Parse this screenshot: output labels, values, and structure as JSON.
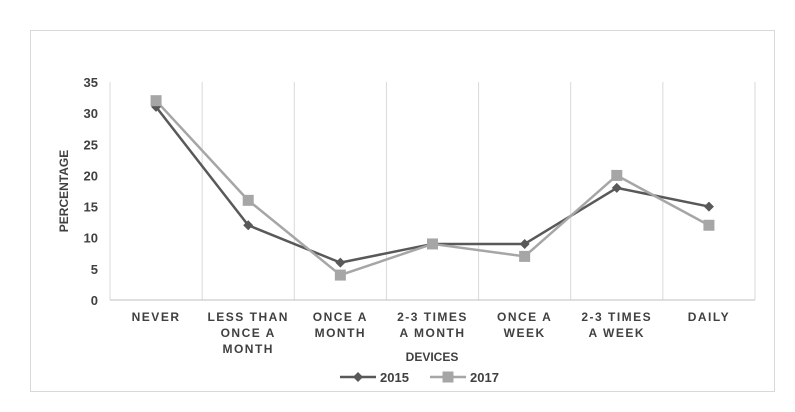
{
  "chart_data": {
    "type": "line",
    "title": "",
    "xlabel": "DEVICES",
    "ylabel": "PERCENTAGE",
    "categories": [
      [
        "NEVER"
      ],
      [
        "LESS THAN",
        "ONCE A",
        "MONTH"
      ],
      [
        "ONCE A",
        "MONTH"
      ],
      [
        "2-3 TIMES",
        "A MONTH"
      ],
      [
        "ONCE  A",
        "WEEK"
      ],
      [
        "2-3 TIMES",
        "A WEEK"
      ],
      [
        "DAILY"
      ]
    ],
    "ylim": [
      0,
      35
    ],
    "yticks": [
      0,
      5,
      10,
      15,
      20,
      25,
      30,
      35
    ],
    "grid": "vertical",
    "legend": "bottom",
    "series": [
      {
        "name": "2015",
        "color": "#595959",
        "marker": "diamond",
        "values": [
          31,
          12,
          6,
          9,
          9,
          18,
          15
        ]
      },
      {
        "name": "2017",
        "color": "#a6a6a6",
        "marker": "square",
        "values": [
          32,
          16,
          4,
          9,
          7,
          20,
          12
        ]
      }
    ]
  }
}
